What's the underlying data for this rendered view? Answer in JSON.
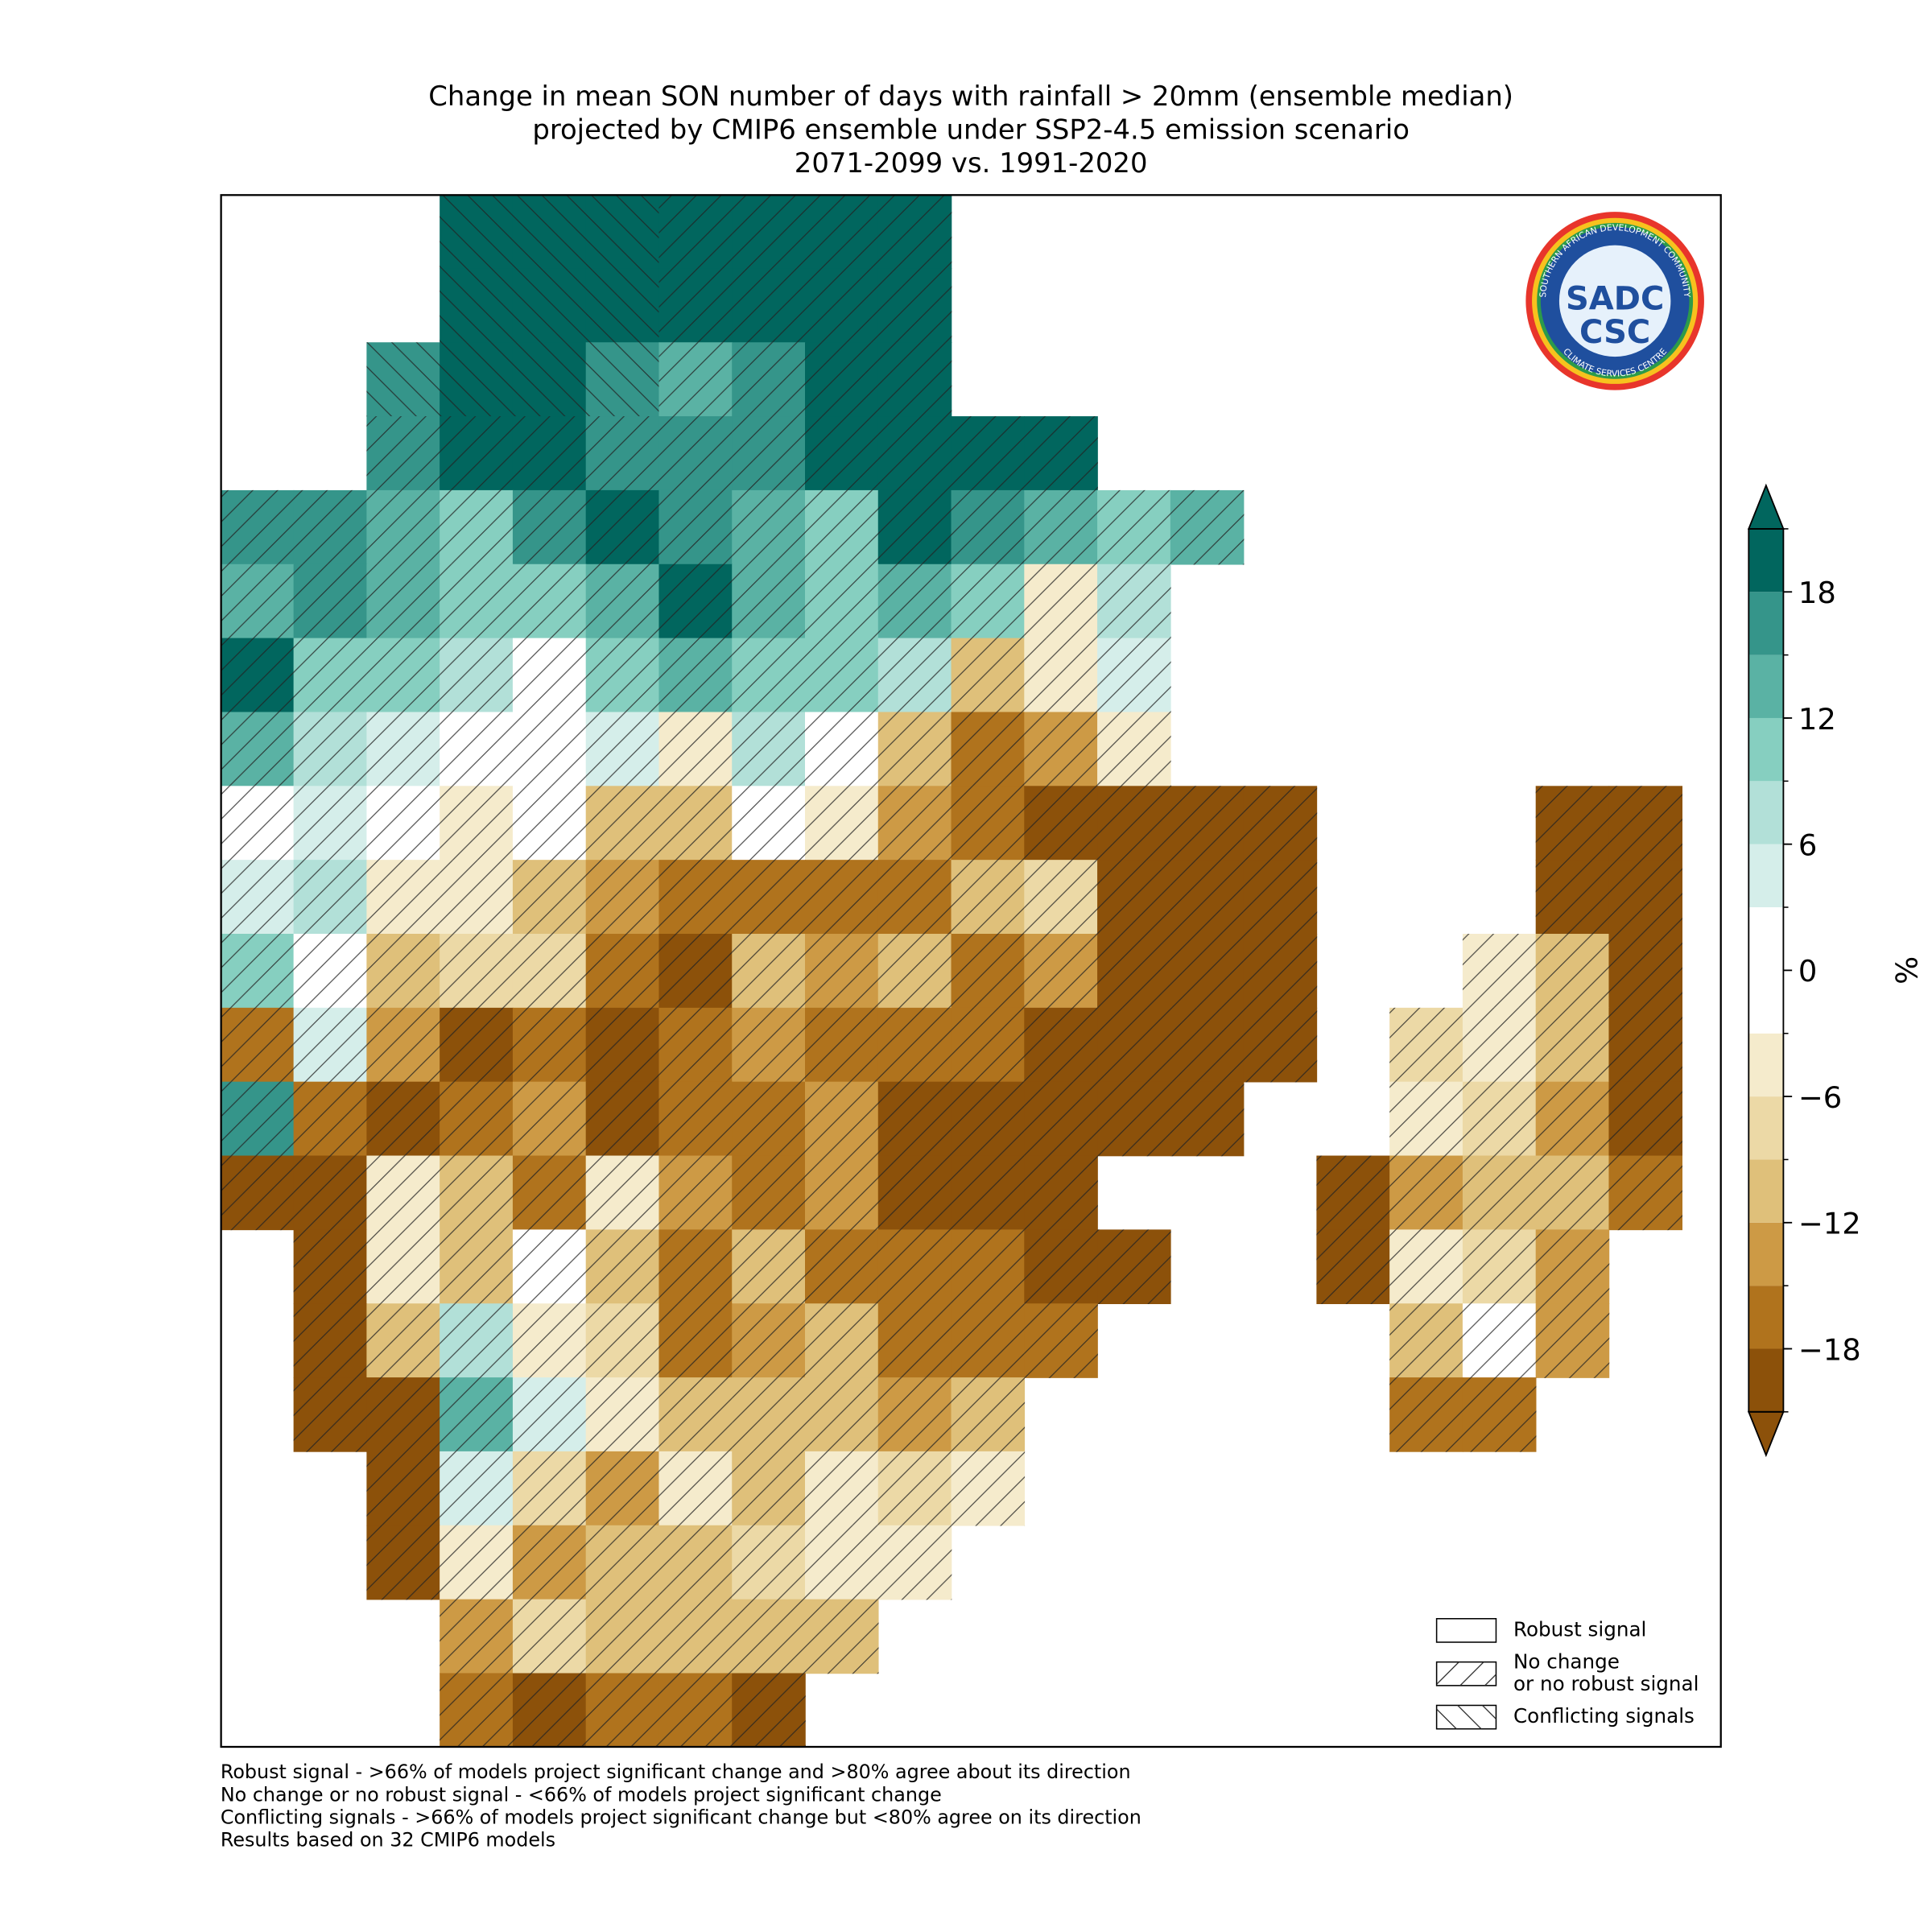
{
  "title": [
    "Change in mean SON number of days with rainfall > 20mm (ensemble median)",
    "projected by CMIP6 ensemble under SSP2-4.5 emission scenario",
    "2071-2099 vs. 1991-2020"
  ],
  "grid": {
    "rows": [
      [
        null,
        null,
        null,
        20,
        20,
        20,
        20,
        20,
        20,
        20,
        null,
        null,
        null,
        null,
        null,
        null,
        null,
        null,
        null,
        null,
        null
      ],
      [
        null,
        null,
        null,
        20,
        20,
        20,
        20,
        20,
        20,
        20,
        null,
        null,
        null,
        null,
        null,
        null,
        null,
        null,
        null,
        null,
        null
      ],
      [
        null,
        null,
        16,
        20,
        20,
        15,
        14,
        16,
        20,
        18,
        null,
        null,
        null,
        null,
        null,
        null,
        null,
        null,
        null,
        null,
        null
      ],
      [
        null,
        null,
        16,
        20,
        20,
        16,
        17,
        15,
        18,
        20,
        20,
        20,
        null,
        null,
        null,
        null,
        null,
        null,
        null,
        null,
        null
      ],
      [
        16,
        17,
        13,
        11,
        16,
        19,
        15,
        13,
        10,
        18,
        17,
        14,
        10,
        12,
        null,
        null,
        null,
        null,
        null,
        null,
        null
      ],
      [
        14,
        16,
        12,
        9,
        10,
        13,
        18,
        14,
        11,
        14,
        11,
        -6,
        6,
        null,
        null,
        null,
        null,
        null,
        null,
        null,
        null
      ],
      [
        18,
        10,
        11,
        6,
        0,
        10,
        12,
        10,
        9,
        8,
        -10,
        -5,
        5,
        null,
        null,
        null,
        null,
        null,
        null,
        null,
        null
      ],
      [
        12,
        6,
        5,
        0,
        0,
        3,
        -6,
        8,
        2,
        -12,
        -18,
        -15,
        -6,
        null,
        null,
        null,
        null,
        null,
        null,
        null,
        null
      ],
      [
        0,
        5,
        2,
        -5,
        -3,
        -10,
        -12,
        -3,
        -6,
        -15,
        -18,
        -19,
        -20,
        -20,
        -20,
        null,
        null,
        null,
        -20,
        -20,
        null
      ],
      [
        3,
        6,
        -4,
        -6,
        -10,
        -15,
        -16,
        -16,
        -18,
        -16,
        -10,
        -8,
        -20,
        -20,
        -20,
        null,
        null,
        null,
        -20,
        -20,
        null
      ],
      [
        10,
        0,
        -10,
        -7,
        -9,
        -17,
        -19,
        -10,
        -14,
        -12,
        -16,
        -15,
        -20,
        -20,
        -20,
        null,
        null,
        -6,
        -12,
        -20,
        null
      ],
      [
        -17,
        3,
        -14,
        -19,
        -17,
        -19,
        -17,
        -15,
        -18,
        -18,
        -17,
        -20,
        -20,
        -20,
        -20,
        null,
        -8,
        -5,
        -10,
        -20,
        null
      ],
      [
        15,
        -18,
        -19,
        -18,
        -15,
        -19,
        -17,
        -17,
        -15,
        -19,
        -20,
        -20,
        -20,
        -20,
        null,
        null,
        -6,
        -9,
        -15,
        -20,
        null
      ],
      [
        -20,
        -19,
        -6,
        -12,
        -18,
        -6,
        -15,
        -18,
        -14,
        -20,
        -19,
        -19,
        null,
        null,
        null,
        -20,
        -14,
        -10,
        -12,
        -18,
        null
      ],
      [
        null,
        -19,
        -6,
        -10,
        -3,
        -10,
        -17,
        -12,
        -17,
        -17,
        -18,
        -20,
        -20,
        null,
        null,
        -20,
        -5,
        -8,
        -14,
        null,
        null
      ],
      [
        null,
        -20,
        -12,
        8,
        -6,
        -9,
        -18,
        -15,
        -12,
        -16,
        -18,
        -17,
        null,
        null,
        null,
        null,
        -10,
        -3,
        -15,
        null,
        null
      ],
      [
        null,
        -20,
        -20,
        14,
        5,
        -5,
        -12,
        -10,
        -12,
        -14,
        -12,
        null,
        null,
        null,
        null,
        null,
        -18,
        -16,
        null,
        null,
        null
      ],
      [
        null,
        null,
        -20,
        5,
        -8,
        -13,
        -5,
        -12,
        -4,
        -9,
        -4,
        null,
        null,
        null,
        null,
        null,
        null,
        null,
        null,
        null,
        null
      ],
      [
        null,
        null,
        -20,
        -5,
        -13,
        -10,
        -12,
        -8,
        -5,
        -6,
        null,
        null,
        null,
        null,
        null,
        null,
        null,
        null,
        null,
        null,
        null
      ],
      [
        null,
        null,
        null,
        -14,
        -8,
        -12,
        -12,
        -10,
        -12,
        null,
        null,
        null,
        null,
        null,
        null,
        null,
        null,
        null,
        null,
        null,
        null
      ],
      [
        null,
        null,
        null,
        -18,
        -19,
        -17,
        -18,
        -19,
        null,
        null,
        null,
        null,
        null,
        null,
        null,
        null,
        null,
        null,
        null,
        null,
        null
      ]
    ]
  },
  "colorbar": {
    "bounds": [
      -21,
      -18,
      -15,
      -12,
      -9,
      -6,
      -3,
      3,
      6,
      9,
      12,
      15,
      18,
      21
    ],
    "colors": [
      "#8c510a",
      "#b0731d",
      "#cd9a45",
      "#dfc07a",
      "#ecd9a6",
      "#f5ebcc",
      "#ffffff",
      "#d5eeea",
      "#b2e0d8",
      "#86cfc0",
      "#5ab2a4",
      "#35958a",
      "#01665e"
    ],
    "ticks": [
      {
        "value": -18,
        "label": "−18"
      },
      {
        "value": -12,
        "label": "−12"
      },
      {
        "value": -6,
        "label": "−6"
      },
      0,
      6,
      12,
      18
    ],
    "label": "%"
  },
  "logo": {
    "ring_top": "SOUTHERN AFRICAN DEVELOPMENT COMMUNITY",
    "ring_bottom": "CLIMATE SERVICES CENTRE",
    "top": "SADC",
    "bottom": "CSC"
  },
  "legend": [
    {
      "lines": [
        "Robust signal"
      ]
    },
    {
      "lines": [
        "No change",
        "or no robust signal"
      ]
    },
    {
      "lines": [
        "Conflicting signals"
      ]
    }
  ],
  "footnotes": [
    "Robust signal - >66% of models project significant change and >80% agree about its direction",
    "No change or no robust signal - <66% of models project significant change",
    "Conflicting signals - >66% of models project significant change but <80% agree on its direction",
    "Results based on 32 CMIP6 models"
  ]
}
